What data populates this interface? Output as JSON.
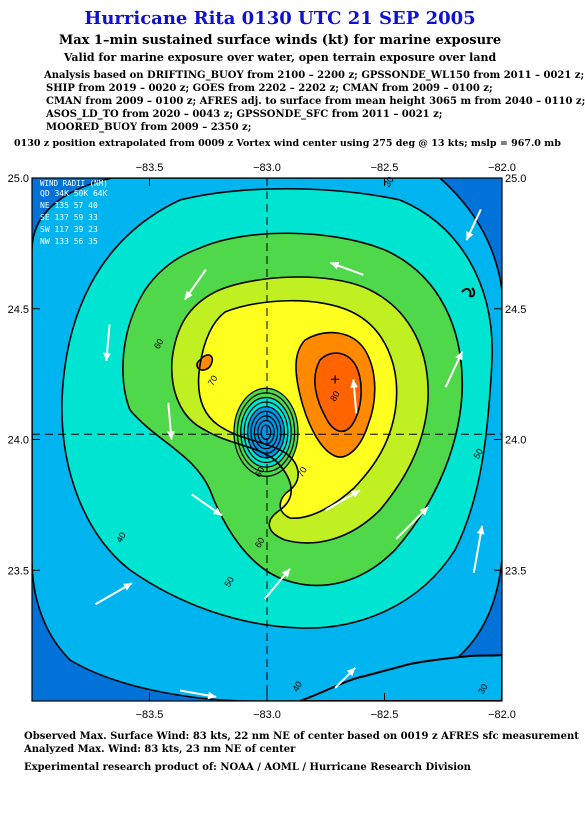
{
  "header": {
    "title": "Hurricane Rita 0130 UTC 21 SEP 2005",
    "subtitle": "Max 1–min sustained surface winds (kt) for marine exposure",
    "subtitle2": "Valid for marine exposure over water, open terrain exposure over land"
  },
  "analysis_lines": [
    "Analysis based on  DRIFTING_BUOY from 2100 – 2200 z;  GPSSONDE_WL150 from 2011 – 0021 z;",
    "SHIP from 2019 – 0020 z;  GOES from 2202 – 2202 z;  CMAN from 2009 – 0100 z;",
    "CMAN from 2009 – 0100 z;  AFRES adj. to surface from mean height 3065 m from 2040 – 0110 z;",
    "ASOS_LD_TO from 2020 – 0043 z;  GPSSONDE_SFC from 2011 – 0021 z;",
    "MOORED_BUOY from 2009 – 2350 z;"
  ],
  "position_note": "0130 z position extrapolated from 0009 z Vortex wind center using 275 deg @ 13 kts; mslp = 967.0 mb",
  "wind_radii": {
    "header": "WIND RADII (NM)",
    "rows": [
      "QD  34K  50K  64K",
      "NE 135   57   40",
      "SE 137   59   33",
      "SW 117   39   23",
      "NW 133   56   35"
    ]
  },
  "footer": {
    "observed": "Observed Max. Surface Wind: 83 kts, 22 nm NE of center based on 0019 z AFRES sfc measurement",
    "analyzed": "Analyzed Max. Wind: 83 kts, 23 nm NE of center",
    "credit": "Experimental research product of:  NOAA / AOML / Hurricane Research Division"
  },
  "chart_data": {
    "type": "contour",
    "x_axis": {
      "min": -84.0,
      "max": -82.0,
      "ticks": [
        -83.5,
        -83.0,
        -82.5,
        -82.0
      ],
      "tick_labels": [
        "−83.5",
        "−83.0",
        "−82.5",
        "−82.0"
      ]
    },
    "y_axis": {
      "min": 23.0,
      "max": 25.0,
      "ticks": [
        23.5,
        24.0,
        24.5,
        25.0
      ],
      "tick_labels": [
        "23.5",
        "24.0",
        "24.5",
        "25.0"
      ]
    },
    "center": {
      "lon": -83.0,
      "lat": 24.02
    },
    "max_wind_location": {
      "lon": -82.71,
      "lat": 24.23
    },
    "contour_labels": [
      {
        "text": "30",
        "lon": -82.47,
        "lat": 24.98
      },
      {
        "text": "30",
        "lon": -82.07,
        "lat": 23.04
      },
      {
        "text": "40",
        "lon": -83.61,
        "lat": 23.62
      },
      {
        "text": "40",
        "lon": -82.86,
        "lat": 23.05
      },
      {
        "text": "50",
        "lon": -83.15,
        "lat": 23.45
      },
      {
        "text": "50",
        "lon": -82.09,
        "lat": 23.94
      },
      {
        "text": "60",
        "lon": -83.45,
        "lat": 24.36
      },
      {
        "text": "60",
        "lon": -83.02,
        "lat": 23.87
      },
      {
        "text": "60",
        "lon": -83.02,
        "lat": 23.6
      },
      {
        "text": "70",
        "lon": -83.22,
        "lat": 24.22
      },
      {
        "text": "70",
        "lon": -82.84,
        "lat": 23.87
      },
      {
        "text": "80",
        "lon": -82.7,
        "lat": 24.16
      }
    ],
    "observations": [
      {
        "lon": -82.09,
        "lat": 24.88,
        "dir": 205,
        "spd": 40
      },
      {
        "lon": -83.26,
        "lat": 24.65,
        "dir": 215,
        "spd": 45
      },
      {
        "lon": -82.59,
        "lat": 24.63,
        "dir": 290,
        "spd": 42
      },
      {
        "lon": -83.67,
        "lat": 24.44,
        "dir": 185,
        "spd": 45
      },
      {
        "lon": -83.42,
        "lat": 24.14,
        "dir": 175,
        "spd": 45
      },
      {
        "lon": -83.32,
        "lat": 23.79,
        "dir": 125,
        "spd": 45
      },
      {
        "lon": -82.62,
        "lat": 24.1,
        "dir": 355,
        "spd": 40
      },
      {
        "lon": -82.24,
        "lat": 24.2,
        "dir": 25,
        "spd": 50
      },
      {
        "lon": -82.75,
        "lat": 23.73,
        "dir": 60,
        "spd": 50
      },
      {
        "lon": -82.45,
        "lat": 23.62,
        "dir": 45,
        "spd": 60
      },
      {
        "lon": -82.12,
        "lat": 23.49,
        "dir": 10,
        "spd": 65
      },
      {
        "lon": -83.01,
        "lat": 23.39,
        "dir": 40,
        "spd": 50
      },
      {
        "lon": -83.37,
        "lat": 23.04,
        "dir": 100,
        "spd": 45
      },
      {
        "lon": -83.73,
        "lat": 23.37,
        "dir": 60,
        "spd": 55
      },
      {
        "lon": -82.71,
        "lat": 23.05,
        "dir": 45,
        "spd": 30
      }
    ],
    "colors": {
      "c30": "#0072d8",
      "c40": "#00b4f0",
      "c50": "#00e4d2",
      "c60": "#4ed84a",
      "c70": "#c0ef22",
      "c80": "#ffff20",
      "c83": "#ff8a00",
      "c90": "#ff6400",
      "eye": "#0096e6"
    }
  }
}
